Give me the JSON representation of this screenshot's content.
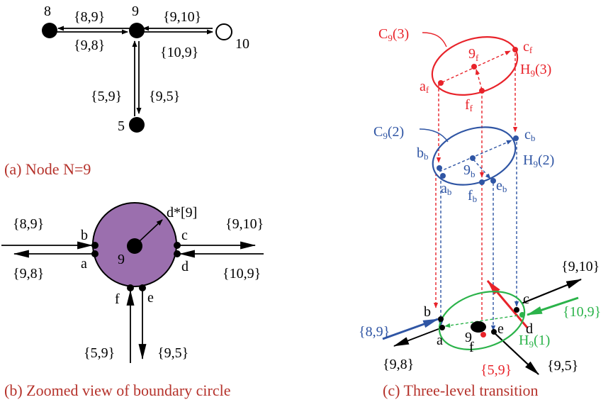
{
  "panel_a": {
    "caption": "(a) Node N=9",
    "nodes": {
      "n8": "8",
      "n9": "9",
      "n10": "10",
      "n5": "5"
    },
    "edges": {
      "e8_9": "{8,9}",
      "e9_8": "{9,8}",
      "e9_10": "{9,10}",
      "e10_9": "{10,9}",
      "e5_9": "{5,9}",
      "e9_5": "{9,5}"
    }
  },
  "panel_b": {
    "caption": "(b) Zoomed view of boundary circle",
    "center": "9",
    "radius": "d*[9]",
    "points": {
      "a": "a",
      "b": "b",
      "c": "c",
      "d": "d",
      "e": "e",
      "f": "f"
    },
    "edges": {
      "e8_9": "{8,9}",
      "e9_8": "{9,8}",
      "e9_10": "{9,10}",
      "e10_9": "{10,9}",
      "e5_9": "{5,9}",
      "e9_5": "{9,5}"
    },
    "colors": {
      "disc": "#9b6fae"
    }
  },
  "panel_c": {
    "caption": "(c) Three-level transition",
    "levels": {
      "top": {
        "cycle_main": "C",
        "cycle_sub": "9",
        "cycle_arg": "(3)",
        "hull_main": "H",
        "hull_sub": "9",
        "hull_arg": "(3)",
        "center_main": "9",
        "center_sub": "f",
        "a": "a",
        "a_sub": "f",
        "c": "c",
        "c_sub": "f",
        "f": "f",
        "f_sub": "f"
      },
      "mid": {
        "cycle_main": "C",
        "cycle_sub": "9",
        "cycle_arg": "(2)",
        "hull_main": "H",
        "hull_sub": "9",
        "hull_arg": "(2)",
        "center_main": "9",
        "center_sub": "b",
        "b": "b",
        "b_sub": "b",
        "a": "a",
        "a_sub": "b",
        "c": "c",
        "c_sub": "b",
        "e": "e",
        "e_sub": "b",
        "f": "f",
        "f_sub": "b"
      },
      "bottom": {
        "hull_main": "H",
        "hull_sub": "9",
        "hull_arg": "(1)",
        "center": "9",
        "a": "a",
        "b": "b",
        "c": "c",
        "d": "d",
        "e": "e",
        "f": "f"
      }
    },
    "edges": {
      "e8_9": "{8,9}",
      "e9_8": "{9,8}",
      "e9_10": "{9,10}",
      "e10_9": "{10,9}",
      "e5_9": "{5,9}",
      "e9_5": "{9,5}"
    },
    "colors": {
      "red": "#e8232a",
      "blue": "#2f55a4",
      "green": "#2bb34a",
      "caption": "#b5322b"
    }
  }
}
